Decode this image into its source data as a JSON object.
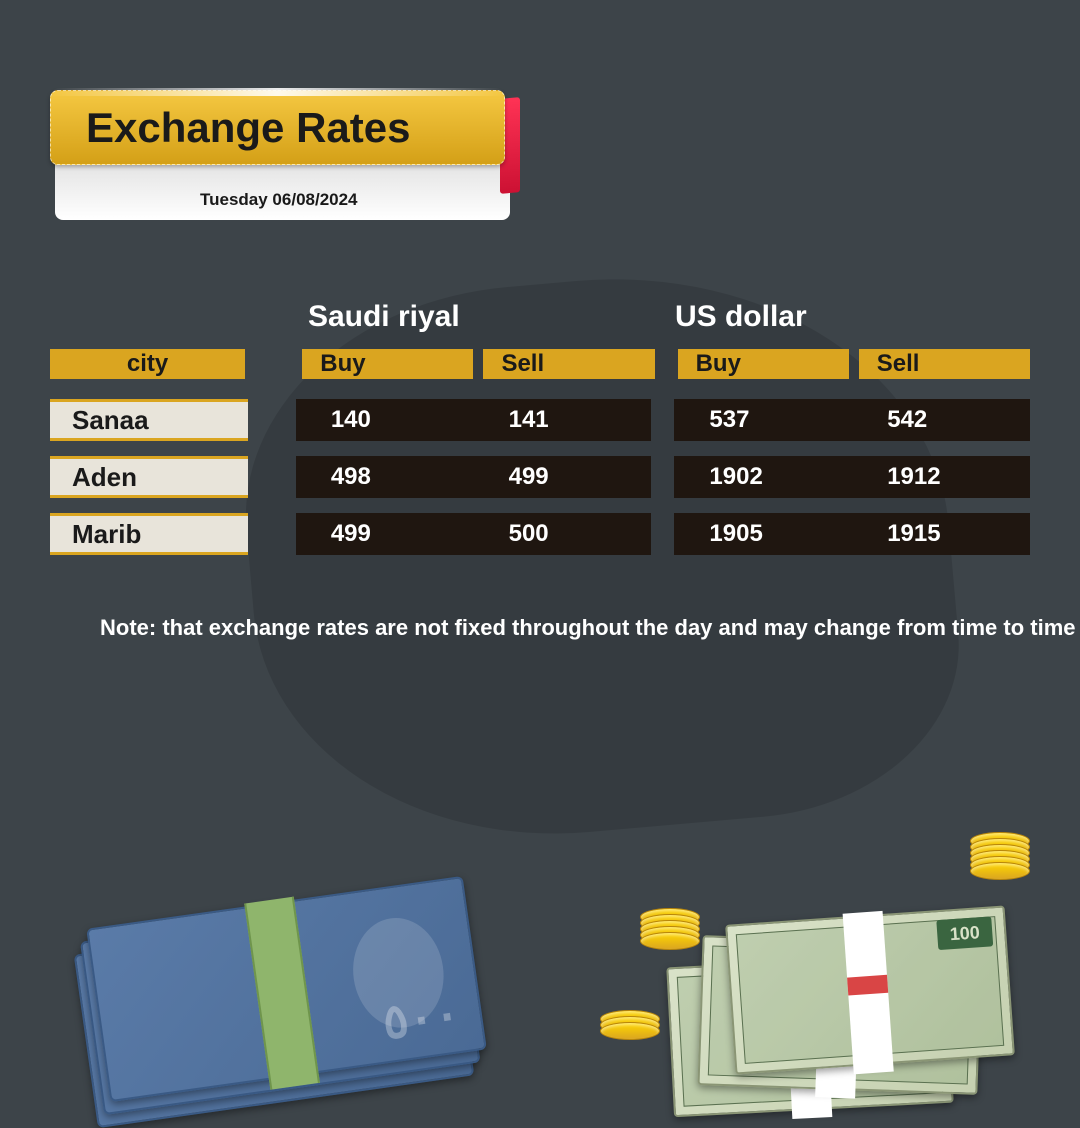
{
  "title": "Exchange Rates",
  "date": "Tuesday 06/08/2024",
  "currencies": {
    "sar_label": "Saudi riyal",
    "usd_label": "US dollar"
  },
  "table": {
    "city_header": "city",
    "buy_header": "Buy",
    "sell_header": "Sell",
    "rows": [
      {
        "city": "Sanaa",
        "sar_buy": "140",
        "sar_sell": "141",
        "usd_buy": "537",
        "usd_sell": "542"
      },
      {
        "city": "Aden",
        "sar_buy": "498",
        "sar_sell": "499",
        "usd_buy": "1902",
        "usd_sell": "1912"
      },
      {
        "city": "Marib",
        "sar_buy": "499",
        "sar_sell": "500",
        "usd_buy": "1905",
        "usd_sell": "1915"
      }
    ]
  },
  "note": "Note: that exchange rates are not fixed throughout the day and may change from time to time",
  "styling": {
    "background_color": "#3d4449",
    "banner_gradient": [
      "#f5c842",
      "#d4a017"
    ],
    "banner_accent": "#cc1133",
    "header_bg": "#daa520",
    "header_text": "#1a1a1a",
    "city_cell_bg": "#e8e4da",
    "city_cell_border": "#daa520",
    "rate_cell_bg": "#1f1610",
    "rate_text": "#ffffff",
    "title_fontsize": 42,
    "currency_fontsize": 30,
    "header_fontsize": 24,
    "cell_fontsize": 26,
    "value_fontsize": 24,
    "note_fontsize": 22
  }
}
